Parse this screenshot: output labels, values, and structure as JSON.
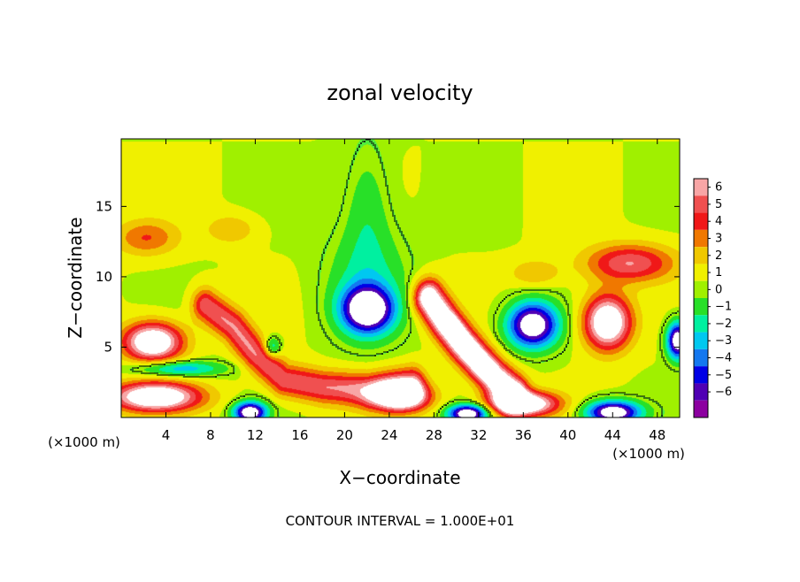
{
  "chart_data": {
    "type": "heatmap",
    "title": "zonal velocity",
    "xlabel": "X−coordinate",
    "ylabel": "Z−coordinate",
    "x_unit_left": "(×1000 m)",
    "x_unit_right": "(×1000 m)",
    "footer": "CONTOUR INTERVAL = 1.000E+01",
    "xlim": [
      0,
      50
    ],
    "ylim": [
      0,
      19.8
    ],
    "x_ticks": [
      4,
      8,
      12,
      16,
      20,
      24,
      28,
      32,
      36,
      40,
      44,
      48
    ],
    "x_ticklabels": [
      "4",
      "8",
      "12",
      "16",
      "20",
      "24",
      "28",
      "32",
      "36",
      "40",
      "44",
      "48"
    ],
    "y_ticks": [
      5,
      10,
      15
    ],
    "y_ticklabels": [
      "5",
      "10",
      "15"
    ],
    "colorbar": {
      "levels": [
        6,
        5,
        4,
        3,
        2,
        1,
        0,
        -1,
        -2,
        -3,
        -4,
        -5,
        -6
      ],
      "labels": [
        "6",
        "5",
        "4",
        "3",
        "2",
        "1",
        "0",
        "−1",
        "−2",
        "−3",
        "−4",
        "−5",
        "−6"
      ],
      "colors": [
        "#f8a6a6",
        "#f05050",
        "#f01818",
        "#f07800",
        "#f0c800",
        "#f0f000",
        "#a0f000",
        "#28e028",
        "#00f0a0",
        "#00c8f0",
        "#1478f0",
        "#0000e6",
        "#5000b4",
        "#8c00a0"
      ]
    },
    "background_color": "#50ec40",
    "saturated_color": "#ffffff",
    "features": [
      {
        "kind": "blob",
        "x": 22,
        "y": 7.7,
        "rx": 2.8,
        "ry": 2.0,
        "value": -9
      },
      {
        "kind": "blob",
        "x": 22,
        "y": 9.5,
        "rx": 4.5,
        "ry": 5.0,
        "value": -2.2
      },
      {
        "kind": "blob",
        "x": 22,
        "y": 15,
        "rx": 2.5,
        "ry": 5.5,
        "value": -1.6
      },
      {
        "kind": "blob",
        "x": 36.8,
        "y": 6.6,
        "rx": 2.8,
        "ry": 2.0,
        "value": -9
      },
      {
        "kind": "blob",
        "x": 43.5,
        "y": 6.8,
        "rx": 2.6,
        "ry": 2.4,
        "value": 9
      },
      {
        "kind": "blob",
        "x": 49.8,
        "y": 5.5,
        "rx": 1.2,
        "ry": 1.6,
        "value": -9
      },
      {
        "kind": "blob",
        "x": 2.8,
        "y": 5.4,
        "rx": 3.3,
        "ry": 1.7,
        "value": 9
      },
      {
        "kind": "blob",
        "x": 2.2,
        "y": 12.8,
        "rx": 3.6,
        "ry": 1.6,
        "value": 3
      },
      {
        "kind": "blob",
        "x": 9.8,
        "y": 13.4,
        "rx": 2.8,
        "ry": 1.3,
        "value": 2
      },
      {
        "kind": "blob",
        "x": 45.5,
        "y": 11.0,
        "rx": 5.0,
        "ry": 1.7,
        "value": 5
      },
      {
        "kind": "blob",
        "x": 37,
        "y": 10.3,
        "rx": 2.8,
        "ry": 1.2,
        "value": 2
      },
      {
        "kind": "blob",
        "x": 3.0,
        "y": 1.5,
        "rx": 5.0,
        "ry": 1.3,
        "value": 9
      },
      {
        "kind": "blob",
        "x": 25,
        "y": 1.5,
        "rx": 3.2,
        "ry": 1.3,
        "value": 9
      },
      {
        "kind": "blob",
        "x": 36,
        "y": 1.0,
        "rx": 3.8,
        "ry": 1.1,
        "value": 9
      },
      {
        "kind": "blob",
        "x": 11.5,
        "y": 0.4,
        "rx": 1.8,
        "ry": 0.9,
        "value": -9
      },
      {
        "kind": "blob",
        "x": 31,
        "y": 0.3,
        "rx": 2.2,
        "ry": 0.8,
        "value": -9
      },
      {
        "kind": "blob",
        "x": 44,
        "y": 0.4,
        "rx": 3.0,
        "ry": 1.0,
        "value": -9
      },
      {
        "kind": "blob",
        "x": 13.5,
        "y": 5.0,
        "rx": 0.9,
        "ry": 0.9,
        "value": -3.5
      },
      {
        "kind": "blob",
        "x": 5,
        "y": 3.5,
        "rx": 5,
        "ry": 0.7,
        "value": -4
      },
      {
        "kind": "band",
        "points": [
          [
            7.5,
            8.0
          ],
          [
            10,
            6.5
          ],
          [
            12,
            4.5
          ],
          [
            14.5,
            2.7
          ],
          [
            18,
            2.2
          ],
          [
            22,
            2.0
          ],
          [
            26,
            2.5
          ]
        ],
        "width": 1.5,
        "value": 5
      },
      {
        "kind": "band",
        "points": [
          [
            27.5,
            8.5
          ],
          [
            29,
            6.8
          ],
          [
            30.5,
            5.3
          ],
          [
            32,
            4.0
          ],
          [
            33.5,
            2.8
          ],
          [
            35,
            1.8
          ]
        ],
        "width": 1.6,
        "value": 9
      },
      {
        "kind": "band",
        "points": [
          [
            29.3,
            6.8
          ],
          [
            31,
            5.0
          ],
          [
            33,
            3.2
          ]
        ],
        "width": 0.55,
        "value": 11
      }
    ]
  }
}
